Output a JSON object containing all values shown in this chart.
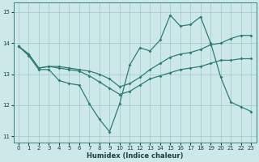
{
  "xlabel": "Humidex (Indice chaleur)",
  "xlim": [
    -0.5,
    23.5
  ],
  "ylim": [
    10.8,
    15.3
  ],
  "yticks": [
    11,
    12,
    13,
    14,
    15
  ],
  "xticks": [
    0,
    1,
    2,
    3,
    4,
    5,
    6,
    7,
    8,
    9,
    10,
    11,
    12,
    13,
    14,
    15,
    16,
    17,
    18,
    19,
    20,
    21,
    22,
    23
  ],
  "background_color": "#cde8e8",
  "grid_color": "#a0c8c8",
  "line_color": "#2e7d74",
  "line1_y": [
    13.9,
    13.6,
    13.15,
    13.15,
    12.8,
    12.7,
    12.65,
    12.05,
    11.55,
    11.15,
    12.05,
    13.3,
    13.85,
    13.75,
    14.1,
    14.9,
    14.55,
    14.6,
    14.85,
    14.0,
    12.9,
    12.1,
    11.95,
    11.8
  ],
  "line2_y": [
    13.9,
    13.65,
    13.2,
    13.25,
    13.25,
    13.2,
    13.15,
    13.1,
    13.0,
    12.85,
    12.6,
    12.7,
    12.9,
    13.15,
    13.35,
    13.55,
    13.65,
    13.7,
    13.8,
    13.95,
    14.0,
    14.15,
    14.25,
    14.25
  ],
  "line3_y": [
    13.9,
    13.65,
    13.2,
    13.25,
    13.2,
    13.15,
    13.1,
    12.95,
    12.75,
    12.55,
    12.35,
    12.45,
    12.65,
    12.85,
    12.95,
    13.05,
    13.15,
    13.2,
    13.25,
    13.35,
    13.45,
    13.45,
    13.5,
    13.5
  ]
}
